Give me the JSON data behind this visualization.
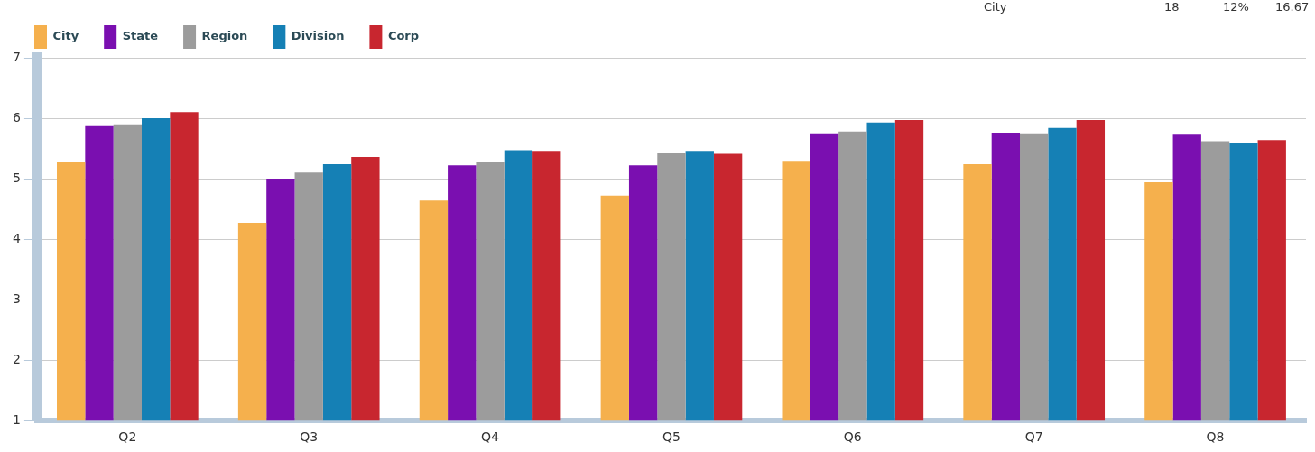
{
  "chart_data": {
    "type": "bar",
    "categories": [
      "Q2",
      "Q3",
      "Q4",
      "Q5",
      "Q6",
      "Q7",
      "Q8"
    ],
    "series": [
      {
        "name": "City",
        "color": "#f5b04d",
        "values": [
          5.27,
          4.27,
          4.64,
          4.72,
          5.28,
          5.24,
          4.94
        ]
      },
      {
        "name": "State",
        "color": "#7a0fb0",
        "values": [
          5.87,
          5.0,
          5.22,
          5.22,
          5.75,
          5.76,
          5.73
        ]
      },
      {
        "name": "Region",
        "color": "#9c9c9c",
        "values": [
          5.9,
          5.1,
          5.27,
          5.42,
          5.78,
          5.75,
          5.62
        ]
      },
      {
        "name": "Division",
        "color": "#1580b5",
        "values": [
          6.0,
          5.24,
          5.47,
          5.46,
          5.93,
          5.84,
          5.59
        ]
      },
      {
        "name": "Corp",
        "color": "#c8262f",
        "values": [
          6.1,
          5.36,
          5.46,
          5.41,
          5.97,
          5.97,
          5.64
        ]
      }
    ],
    "ylim": [
      1,
      7
    ],
    "yticks": [
      1,
      2,
      3,
      4,
      5,
      6,
      7
    ],
    "grid": "y",
    "legend": "top left",
    "annotations": [
      "City",
      "18",
      "12%",
      "16.67"
    ]
  }
}
